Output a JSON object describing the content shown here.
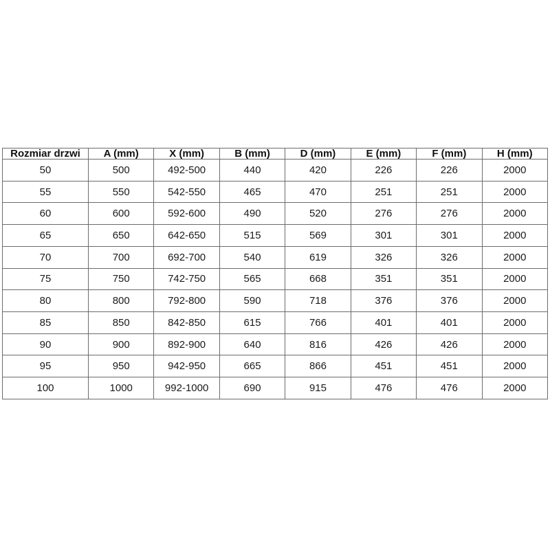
{
  "page": {
    "background_color": "#ffffff",
    "border_color": "#6b6b6b",
    "text_color": "#1a1a1a"
  },
  "table": {
    "columns": [
      "Rozmiar drzwi",
      "A (mm)",
      "X (mm)",
      "B (mm)",
      "D (mm)",
      "E (mm)",
      "F (mm)",
      "H (mm)"
    ],
    "rows": [
      [
        "50",
        "500",
        "492-500",
        "440",
        "420",
        "226",
        "226",
        "2000"
      ],
      [
        "55",
        "550",
        "542-550",
        "465",
        "470",
        "251",
        "251",
        "2000"
      ],
      [
        "60",
        "600",
        "592-600",
        "490",
        "520",
        "276",
        "276",
        "2000"
      ],
      [
        "65",
        "650",
        "642-650",
        "515",
        "569",
        "301",
        "301",
        "2000"
      ],
      [
        "70",
        "700",
        "692-700",
        "540",
        "619",
        "326",
        "326",
        "2000"
      ],
      [
        "75",
        "750",
        "742-750",
        "565",
        "668",
        "351",
        "351",
        "2000"
      ],
      [
        "80",
        "800",
        "792-800",
        "590",
        "718",
        "376",
        "376",
        "2000"
      ],
      [
        "85",
        "850",
        "842-850",
        "615",
        "766",
        "401",
        "401",
        "2000"
      ],
      [
        "90",
        "900",
        "892-900",
        "640",
        "816",
        "426",
        "426",
        "2000"
      ],
      [
        "95",
        "950",
        "942-950",
        "665",
        "866",
        "451",
        "451",
        "2000"
      ],
      [
        "100",
        "1000",
        "992-1000",
        "690",
        "915",
        "476",
        "476",
        "2000"
      ]
    ]
  }
}
